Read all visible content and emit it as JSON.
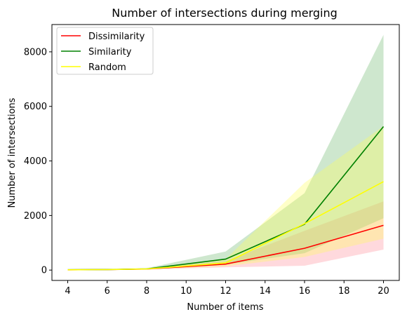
{
  "chart_data": {
    "type": "line",
    "title": "Number of intersections during merging",
    "xlabel": "Number of items",
    "ylabel": "Number of intersections",
    "x": [
      4,
      6,
      8,
      12,
      16,
      20
    ],
    "xlim": [
      3.2,
      20.8
    ],
    "ylim": [
      -380,
      9000
    ],
    "xticks": [
      4,
      6,
      8,
      10,
      12,
      14,
      16,
      18,
      20
    ],
    "yticks": [
      0,
      2000,
      4000,
      6000,
      8000
    ],
    "grid": false,
    "legend_position": "top-left",
    "series": [
      {
        "name": "Dissimilarity",
        "color": "#ff0000",
        "band_color": "#ff8a96",
        "values": [
          10,
          18,
          40,
          220,
          800,
          1640
        ],
        "lower": [
          5,
          10,
          20,
          100,
          160,
          750
        ],
        "upper": [
          15,
          25,
          60,
          330,
          1440,
          2520
        ]
      },
      {
        "name": "Similarity",
        "color": "#008000",
        "band_color": "#66b466",
        "values": [
          12,
          20,
          45,
          400,
          1680,
          5260
        ],
        "lower": [
          5,
          10,
          25,
          200,
          620,
          1900
        ],
        "upper": [
          20,
          30,
          70,
          680,
          2820,
          8620
        ]
      },
      {
        "name": "Random",
        "color": "#ffff00",
        "band_color": "#ffff55",
        "values": [
          11,
          19,
          42,
          260,
          1700,
          3240
        ],
        "lower": [
          5,
          10,
          22,
          140,
          480,
          1150
        ],
        "upper": [
          18,
          28,
          65,
          400,
          3200,
          5280
        ]
      }
    ]
  }
}
